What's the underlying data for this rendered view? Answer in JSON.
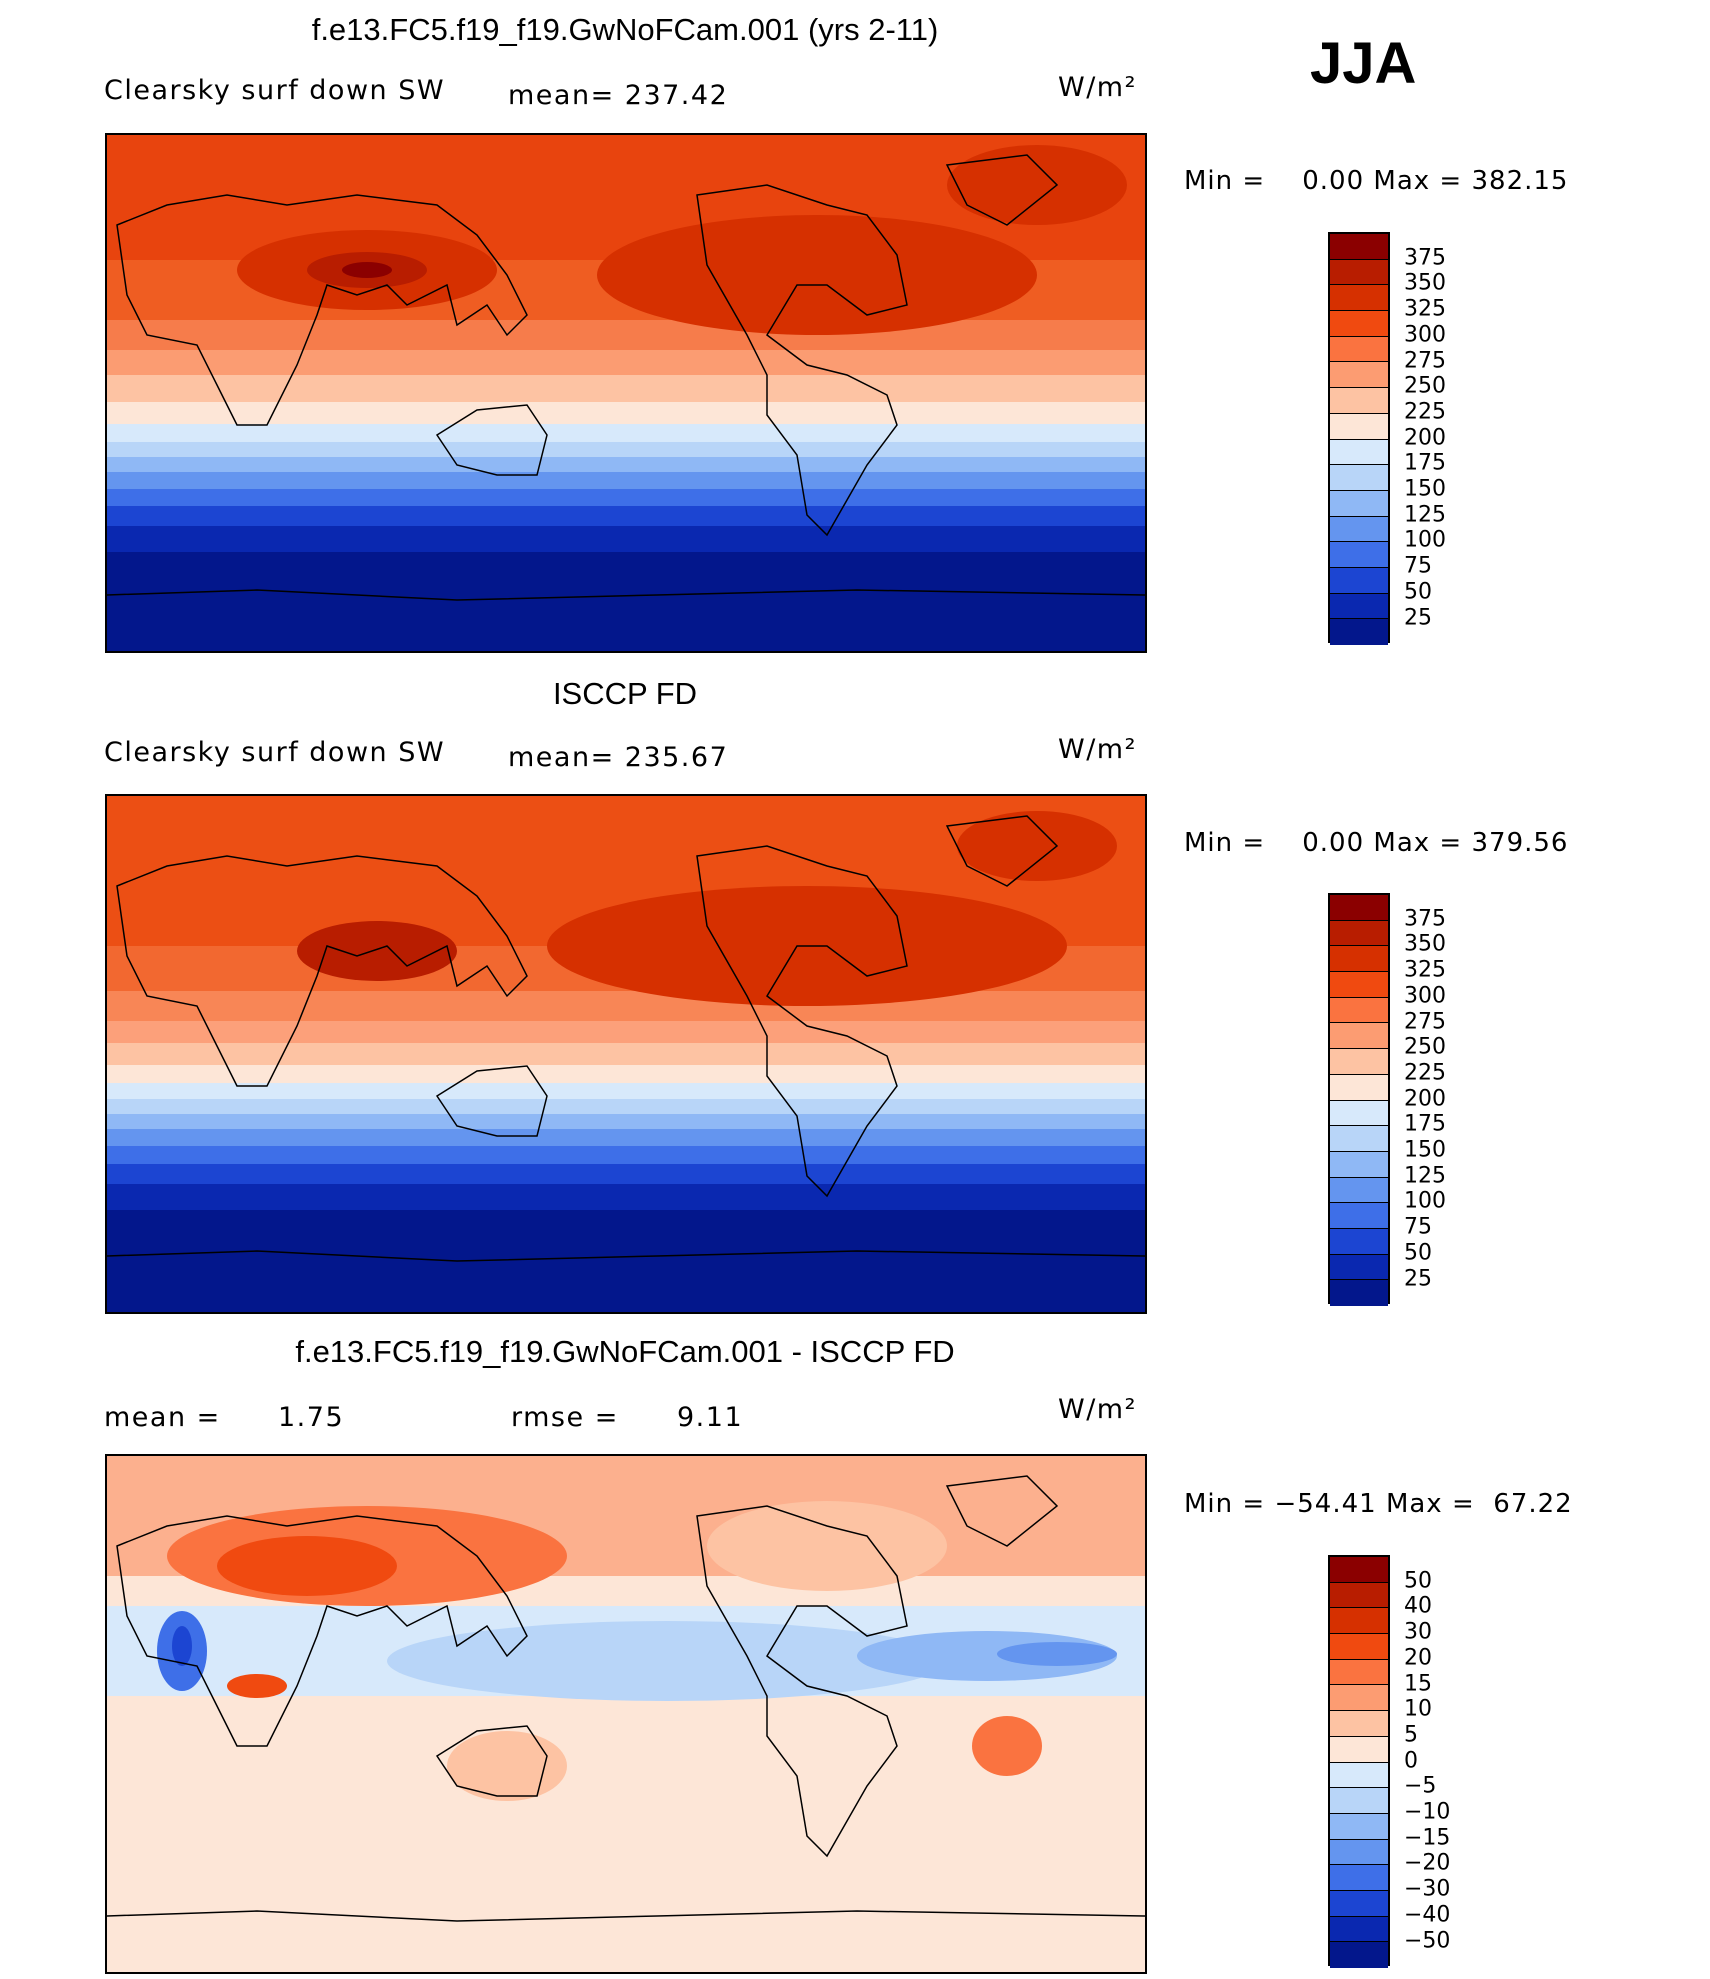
{
  "season": "JJA",
  "panels": [
    {
      "title": "f.e13.FC5.f19_f19.GwNoFCam.001 (yrs 2-11)",
      "variable": "Clearsky surf down SW",
      "stat1": "mean= 237.42",
      "stat2": "",
      "units": "W/m²",
      "min_label": "Min =",
      "min_value": "0.00",
      "max_label": "Max =",
      "max_value": "382.15",
      "kind": "abs",
      "colorbar": {
        "labels": [
          "375",
          "350",
          "325",
          "300",
          "275",
          "250",
          "225",
          "200",
          "175",
          "150",
          "125",
          "100",
          "75",
          "50",
          "25"
        ],
        "colors": [
          "#8b0000",
          "#b81d00",
          "#d63000",
          "#f04a10",
          "#fa7340",
          "#fc9c72",
          "#fdc3a3",
          "#fde6d7",
          "#d7e9fb",
          "#b8d5f8",
          "#8fb8f5",
          "#6495ef",
          "#3e6fe8",
          "#1c45d2",
          "#0a28b0",
          "#03178c"
        ]
      }
    },
    {
      "title": "ISCCP FD",
      "variable": "Clearsky surf down SW",
      "stat1": "mean= 235.67",
      "stat2": "",
      "units": "W/m²",
      "min_label": "Min =",
      "min_value": "0.00",
      "max_label": "Max =",
      "max_value": "379.56",
      "kind": "abs",
      "colorbar": {
        "labels": [
          "375",
          "350",
          "325",
          "300",
          "275",
          "250",
          "225",
          "200",
          "175",
          "150",
          "125",
          "100",
          "75",
          "50",
          "25"
        ],
        "colors": [
          "#8b0000",
          "#b81d00",
          "#d63000",
          "#f04a10",
          "#fa7340",
          "#fc9c72",
          "#fdc3a3",
          "#fde6d7",
          "#d7e9fb",
          "#b8d5f8",
          "#8fb8f5",
          "#6495ef",
          "#3e6fe8",
          "#1c45d2",
          "#0a28b0",
          "#03178c"
        ]
      }
    },
    {
      "title": "f.e13.FC5.f19_f19.GwNoFCam.001 - ISCCP FD",
      "variable": "mean =",
      "variable_value": "1.75",
      "stat1": "rmse =",
      "stat2": "9.11",
      "units": "W/m²",
      "min_label": "Min =",
      "min_value": "−54.41",
      "max_label": "Max =",
      "max_value": "67.22",
      "kind": "diff",
      "colorbar": {
        "labels": [
          "50",
          "40",
          "30",
          "20",
          "15",
          "10",
          "5",
          "0",
          "−5",
          "−10",
          "−15",
          "−20",
          "−30",
          "−40",
          "−50"
        ],
        "colors": [
          "#8b0000",
          "#b81d00",
          "#d63000",
          "#f04a10",
          "#fa7340",
          "#fc9c72",
          "#fdc3a3",
          "#fde6d7",
          "#d7e9fb",
          "#b8d5f8",
          "#8fb8f5",
          "#6495ef",
          "#3e6fe8",
          "#1c45d2",
          "#0a28b0",
          "#03178c"
        ]
      }
    }
  ]
}
